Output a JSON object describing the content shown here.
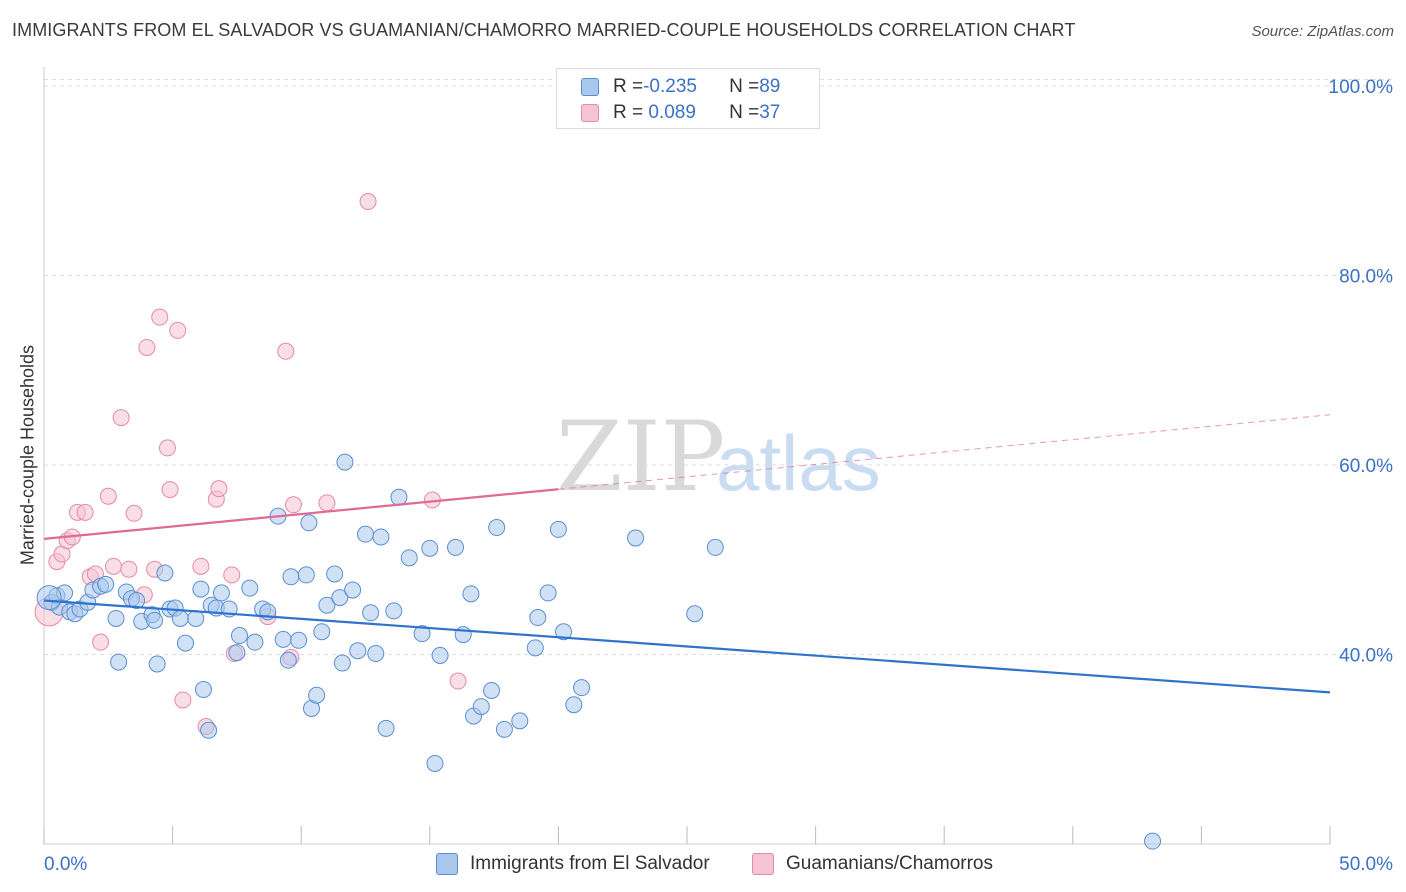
{
  "header": {
    "title": "IMMIGRANTS FROM EL SALVADOR VS GUAMANIAN/CHAMORRO MARRIED-COUPLE HOUSEHOLDS CORRELATION CHART",
    "source": "Source: ZipAtlas.com"
  },
  "watermark": {
    "zip": "ZIP",
    "atlas": "atlas"
  },
  "legend": {
    "rows": [
      {
        "r_label": "R = ",
        "r_value": "-0.235",
        "n_label": "N = ",
        "n_value": "89"
      },
      {
        "r_label": "R = ",
        "r_value": " 0.089",
        "n_label": "N = ",
        "n_value": "37"
      }
    ]
  },
  "colors": {
    "blue_fill": "#aac8ee",
    "blue_stroke": "#5b8fd0",
    "blue_line": "#2f74cc",
    "pink_fill": "#f6c3d2",
    "pink_stroke": "#e58aa7",
    "pink_line": "#e06a93",
    "grid": "#dddddd",
    "axis_text": "#3b72c4"
  },
  "chart_data": {
    "type": "scatter",
    "title": "IMMIGRANTS FROM EL SALVADOR VS GUAMANIAN/CHAMORRO MARRIED-COUPLE HOUSEHOLDS CORRELATION CHART",
    "ylabel": "Married-couple Households",
    "xlim": [
      0,
      50
    ],
    "ylim": [
      20,
      102
    ],
    "x_tick_labels": [
      "0.0%",
      "50.0%"
    ],
    "y_ticks": [
      40,
      60,
      80,
      100
    ],
    "y_tick_labels": [
      "40.0%",
      "60.0%",
      "80.0%",
      "100.0%"
    ],
    "grid": true,
    "legend_position": "top-center",
    "series": [
      {
        "name": "Immigrants from El Salvador",
        "color": "#aac8ee",
        "r": -0.235,
        "n": 89,
        "trend": {
          "x0": 0,
          "y0": 45.7,
          "x1": 50,
          "y1": 36.0,
          "dashed_from": null
        },
        "points": [
          [
            0.3,
            45.5
          ],
          [
            0.5,
            46.2
          ],
          [
            0.6,
            45.0
          ],
          [
            0.8,
            46.5
          ],
          [
            1.0,
            44.5
          ],
          [
            1.2,
            44.3
          ],
          [
            1.4,
            44.8
          ],
          [
            1.7,
            45.5
          ],
          [
            1.9,
            46.8
          ],
          [
            2.2,
            47.2
          ],
          [
            2.4,
            47.4
          ],
          [
            2.8,
            43.8
          ],
          [
            2.9,
            39.2
          ],
          [
            3.2,
            46.6
          ],
          [
            3.4,
            45.9
          ],
          [
            3.6,
            45.7
          ],
          [
            3.8,
            43.5
          ],
          [
            4.2,
            44.2
          ],
          [
            4.3,
            43.6
          ],
          [
            4.4,
            39.0
          ],
          [
            4.7,
            48.6
          ],
          [
            4.9,
            44.8
          ],
          [
            5.1,
            44.9
          ],
          [
            5.3,
            43.8
          ],
          [
            5.5,
            41.2
          ],
          [
            5.9,
            43.8
          ],
          [
            6.1,
            46.9
          ],
          [
            6.2,
            36.3
          ],
          [
            6.4,
            32.0
          ],
          [
            6.5,
            45.2
          ],
          [
            6.7,
            44.9
          ],
          [
            6.9,
            46.5
          ],
          [
            7.2,
            44.8
          ],
          [
            7.5,
            40.2
          ],
          [
            7.6,
            42.0
          ],
          [
            8.0,
            47.0
          ],
          [
            8.2,
            41.3
          ],
          [
            8.5,
            44.8
          ],
          [
            8.7,
            44.5
          ],
          [
            9.1,
            54.6
          ],
          [
            9.3,
            41.6
          ],
          [
            9.5,
            39.4
          ],
          [
            9.6,
            48.2
          ],
          [
            9.9,
            41.5
          ],
          [
            10.2,
            48.4
          ],
          [
            10.3,
            53.9
          ],
          [
            10.4,
            34.3
          ],
          [
            10.6,
            35.7
          ],
          [
            10.8,
            42.4
          ],
          [
            11.0,
            45.2
          ],
          [
            11.3,
            48.5
          ],
          [
            11.5,
            46.0
          ],
          [
            11.6,
            39.1
          ],
          [
            11.7,
            60.3
          ],
          [
            12.0,
            46.8
          ],
          [
            12.2,
            40.4
          ],
          [
            12.5,
            52.7
          ],
          [
            12.7,
            44.4
          ],
          [
            12.9,
            40.1
          ],
          [
            13.1,
            52.4
          ],
          [
            13.3,
            32.2
          ],
          [
            13.6,
            44.6
          ],
          [
            13.8,
            56.6
          ],
          [
            14.2,
            50.2
          ],
          [
            14.7,
            42.2
          ],
          [
            15.0,
            51.2
          ],
          [
            15.2,
            28.5
          ],
          [
            15.4,
            39.9
          ],
          [
            16.0,
            51.3
          ],
          [
            16.3,
            42.1
          ],
          [
            16.6,
            46.4
          ],
          [
            16.7,
            33.5
          ],
          [
            17.0,
            34.5
          ],
          [
            17.4,
            36.2
          ],
          [
            17.6,
            53.4
          ],
          [
            17.9,
            32.1
          ],
          [
            18.5,
            33.0
          ],
          [
            19.1,
            40.7
          ],
          [
            19.2,
            43.9
          ],
          [
            19.6,
            46.5
          ],
          [
            20.0,
            53.2
          ],
          [
            20.2,
            42.4
          ],
          [
            20.6,
            34.7
          ],
          [
            20.9,
            36.5
          ],
          [
            23.0,
            52.3
          ],
          [
            25.3,
            44.3
          ],
          [
            26.1,
            51.3
          ],
          [
            43.1,
            20.3
          ],
          [
            0.2,
            46.0
          ]
        ]
      },
      {
        "name": "Guamanians/Chamorros",
        "color": "#f6c3d2",
        "r": 0.089,
        "n": 37,
        "trend": {
          "x0": 0,
          "y0": 52.2,
          "x1": 50,
          "y1": 65.3,
          "dashed_from": 20.0
        },
        "points": [
          [
            0.2,
            44.5
          ],
          [
            0.5,
            49.8
          ],
          [
            0.7,
            50.6
          ],
          [
            0.9,
            52.0
          ],
          [
            1.1,
            52.4
          ],
          [
            1.3,
            55.0
          ],
          [
            1.6,
            55.0
          ],
          [
            1.8,
            48.2
          ],
          [
            2.0,
            48.5
          ],
          [
            2.2,
            41.3
          ],
          [
            2.5,
            56.7
          ],
          [
            2.7,
            49.3
          ],
          [
            3.0,
            65.0
          ],
          [
            3.3,
            49.0
          ],
          [
            3.5,
            54.9
          ],
          [
            3.9,
            46.3
          ],
          [
            4.0,
            72.4
          ],
          [
            4.3,
            49.0
          ],
          [
            4.5,
            75.6
          ],
          [
            4.8,
            61.8
          ],
          [
            4.9,
            57.4
          ],
          [
            5.2,
            74.2
          ],
          [
            5.4,
            35.2
          ],
          [
            6.1,
            49.3
          ],
          [
            6.3,
            32.4
          ],
          [
            6.7,
            56.4
          ],
          [
            6.8,
            57.5
          ],
          [
            7.3,
            48.4
          ],
          [
            7.4,
            40.1
          ],
          [
            8.7,
            44.0
          ],
          [
            9.4,
            72.0
          ],
          [
            9.6,
            39.7
          ],
          [
            9.7,
            55.8
          ],
          [
            11.0,
            56.0
          ],
          [
            12.6,
            87.8
          ],
          [
            15.1,
            56.3
          ],
          [
            16.1,
            37.2
          ]
        ]
      }
    ]
  },
  "bottom_legend": {
    "items": [
      {
        "label": "Immigrants from El Salvador"
      },
      {
        "label": "Guamanians/Chamorros"
      }
    ]
  }
}
